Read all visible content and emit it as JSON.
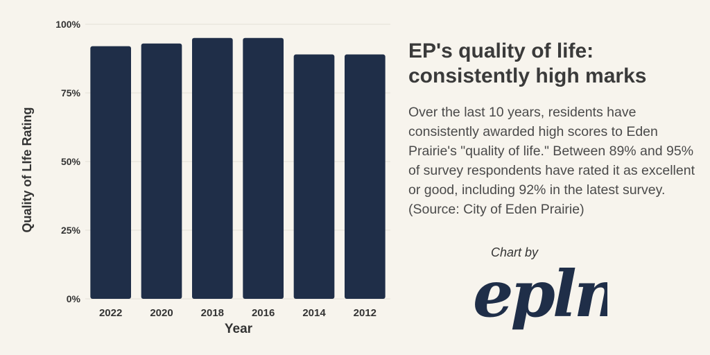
{
  "chart_data": {
    "type": "bar",
    "title": "EP's quality of life: consistently high marks",
    "xlabel": "Year",
    "ylabel": "Quality of LIfe Rating",
    "categories": [
      "2022",
      "2020",
      "2018",
      "2016",
      "2014",
      "2012"
    ],
    "values": [
      92,
      93,
      95,
      95,
      89,
      89
    ],
    "ylim": [
      0,
      100
    ],
    "yticks": [
      0,
      25,
      50,
      75,
      100
    ],
    "ytick_labels": [
      "0%",
      "25%",
      "50%",
      "75%",
      "100%"
    ],
    "grid": true,
    "legend": "none"
  },
  "text": {
    "title": "EP's quality of life: consistently high marks",
    "description": "Over the last 10 years, residents have consistently awarded high scores to Eden Prairie's \"quality of life.\" Between 89% and 95% of survey respondents have rated it as excellent or good, including 92% in the latest survey. (Source: City of Eden Prairie)",
    "credit": "Chart by",
    "logo_text": "epln"
  },
  "colors": {
    "bar": "#1f2e48",
    "background": "#f7f4ed",
    "grid": "#e3e0d8",
    "text": "#333333"
  }
}
